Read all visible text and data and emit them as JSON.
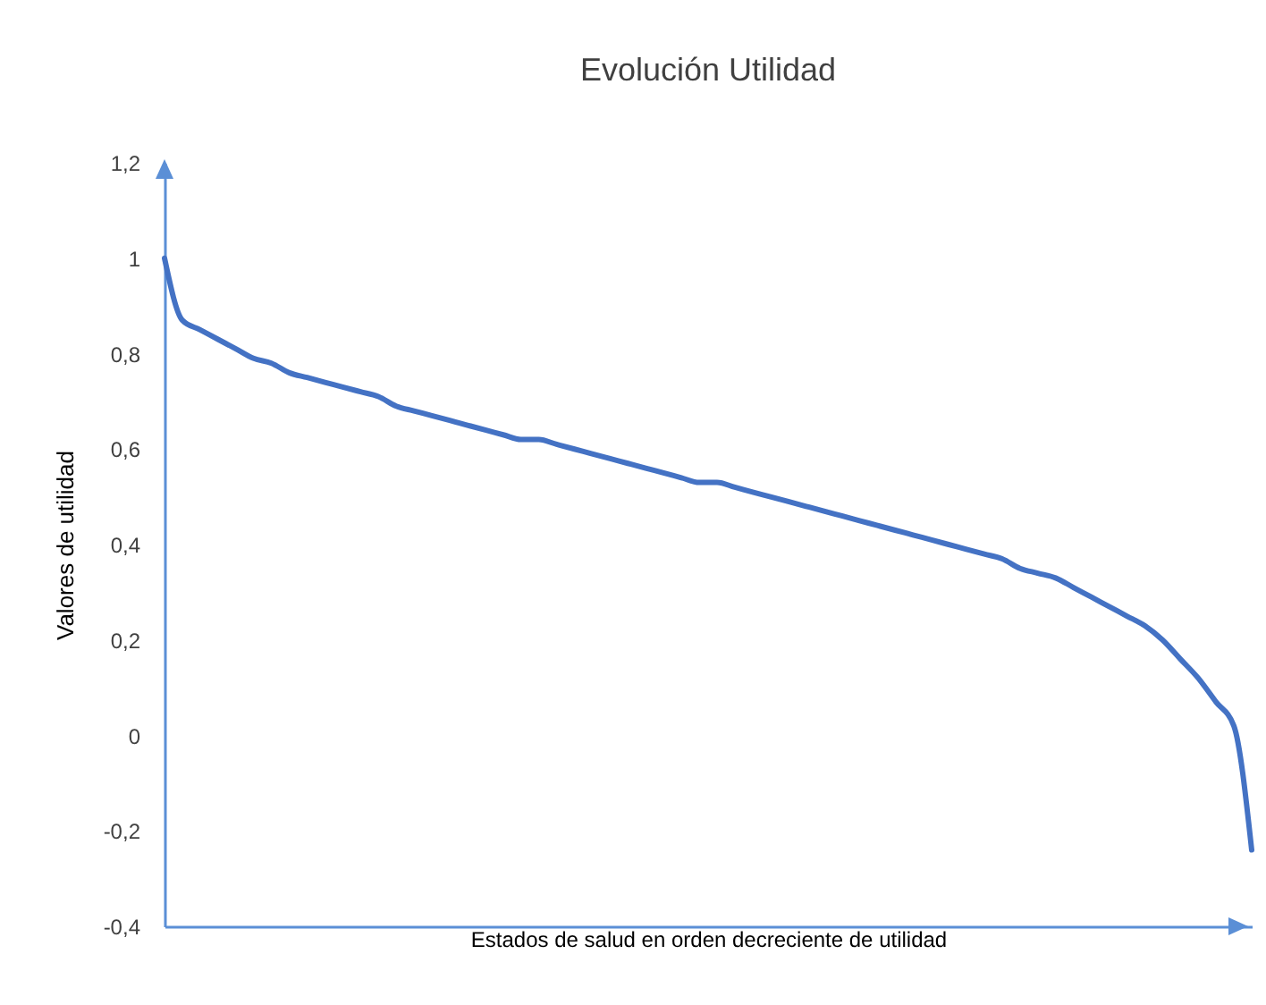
{
  "chart_data": {
    "type": "line",
    "title": "Evolución Utilidad",
    "xlabel": "Estados de salud en orden decreciente de utilidad",
    "ylabel": "Valores de utilidad",
    "categories": [
      null,
      null,
      null,
      null,
      null,
      null,
      null,
      null,
      null,
      null,
      null,
      null,
      null,
      null,
      null,
      null,
      null,
      null,
      null,
      null,
      null,
      null,
      null,
      null,
      null,
      null,
      null,
      null,
      null,
      null,
      null,
      null,
      null,
      null,
      null,
      null,
      null,
      null,
      null,
      null,
      null,
      null,
      null,
      null,
      null,
      null,
      null,
      null,
      null,
      null,
      null,
      null,
      null,
      null,
      null,
      null,
      null,
      null,
      null,
      null,
      null,
      null
    ],
    "series": [
      {
        "color": "#4472c4",
        "values": [
          1.0,
          0.87,
          0.85,
          0.83,
          0.81,
          0.79,
          0.78,
          0.76,
          0.75,
          0.74,
          0.73,
          0.72,
          0.71,
          0.69,
          0.68,
          0.67,
          0.66,
          0.65,
          0.64,
          0.63,
          0.62,
          0.62,
          0.61,
          0.6,
          0.59,
          0.58,
          0.57,
          0.56,
          0.55,
          0.54,
          0.53,
          0.53,
          0.52,
          0.51,
          0.5,
          0.49,
          0.48,
          0.47,
          0.46,
          0.45,
          0.44,
          0.43,
          0.42,
          0.41,
          0.4,
          0.39,
          0.38,
          0.37,
          0.35,
          0.34,
          0.33,
          0.31,
          0.29,
          0.27,
          0.25,
          0.23,
          0.2,
          0.16,
          0.12,
          0.07,
          0.02,
          -0.24
        ]
      }
    ],
    "ylim": [
      -0.4,
      1.2
    ],
    "yticks": [
      {
        "value": -0.4,
        "label": "-0,4"
      },
      {
        "value": -0.2,
        "label": "-0,2"
      },
      0,
      {
        "value": 0.2,
        "label": "0,2"
      },
      {
        "value": 0.4,
        "label": "0,4"
      },
      {
        "value": 0.6,
        "label": "0,6"
      },
      {
        "value": 0.8,
        "label": "0,8"
      },
      1,
      {
        "value": 1.2,
        "label": "1,2"
      }
    ],
    "grid": false,
    "marker": "none",
    "line_style": "solid"
  }
}
